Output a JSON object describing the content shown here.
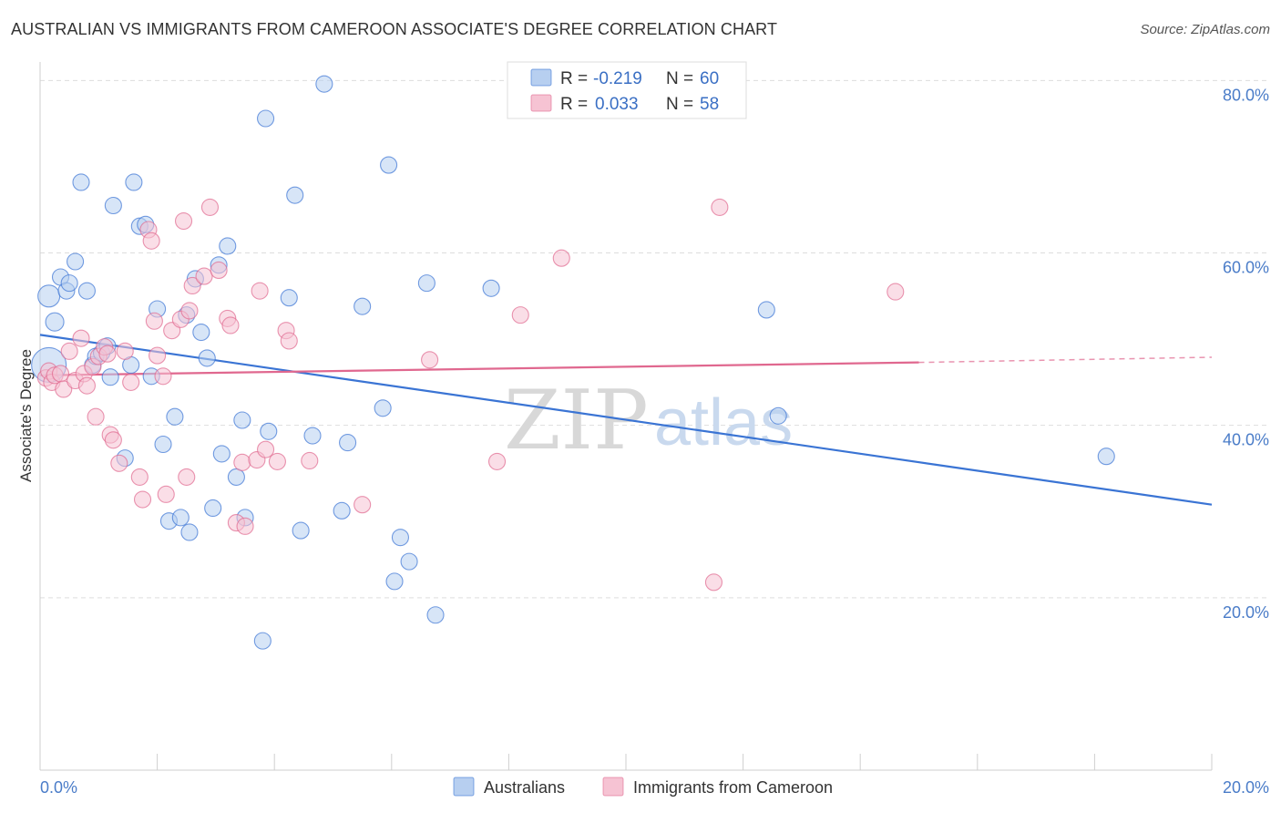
{
  "title": "AUSTRALIAN VS IMMIGRANTS FROM CAMEROON ASSOCIATE'S DEGREE CORRELATION CHART",
  "source": "Source: ZipAtlas.com",
  "watermark": {
    "part1": "ZIP",
    "part2": "atlas"
  },
  "colors": {
    "blue": "#3a74d4",
    "blue_fill": "#b7cff0",
    "pink": "#e0688f",
    "pink_fill": "#f6c3d3",
    "grid": "#dddddd",
    "tick_text": "#4a7cc8"
  },
  "legend": {
    "r_label": "R =",
    "n_label": "N =",
    "rows": [
      {
        "series": "Australians",
        "r": "-0.219",
        "n": "60"
      },
      {
        "series": "Immigrants from Cameroon",
        "r": "0.033",
        "n": "58"
      }
    ]
  },
  "chart_data": {
    "type": "scatter",
    "title": "AUSTRALIAN VS IMMIGRANTS FROM CAMEROON ASSOCIATE'S DEGREE CORRELATION CHART",
    "xlabel": "",
    "ylabel": "Associate's Degree",
    "xlim": [
      0,
      20
    ],
    "ylim": [
      0,
      83
    ],
    "x_tick_labels": [
      "0.0%",
      "20.0%"
    ],
    "y_ticks": [
      20,
      40,
      60,
      80
    ],
    "y_tick_labels": [
      "20.0%",
      "40.0%",
      "60.0%",
      "80.0%"
    ],
    "grid": true,
    "legend_position": "bottom",
    "series": [
      {
        "name": "Australians",
        "color": "#3a74d4",
        "points": [
          [
            0.15,
            47.0
          ],
          [
            0.15,
            55.0
          ],
          [
            0.25,
            52.0
          ],
          [
            0.35,
            57.2
          ],
          [
            0.45,
            55.6
          ],
          [
            0.5,
            56.5
          ],
          [
            0.6,
            59.0
          ],
          [
            0.7,
            68.2
          ],
          [
            0.8,
            55.6
          ],
          [
            0.9,
            47.0
          ],
          [
            0.95,
            48.0
          ],
          [
            1.05,
            48.4
          ],
          [
            1.15,
            49.2
          ],
          [
            1.2,
            45.6
          ],
          [
            1.25,
            65.5
          ],
          [
            1.45,
            36.2
          ],
          [
            1.55,
            47.0
          ],
          [
            1.6,
            68.2
          ],
          [
            1.7,
            63.1
          ],
          [
            1.8,
            63.3
          ],
          [
            1.9,
            45.7
          ],
          [
            2.0,
            53.5
          ],
          [
            2.1,
            37.8
          ],
          [
            2.2,
            28.9
          ],
          [
            2.3,
            41.0
          ],
          [
            2.4,
            29.3
          ],
          [
            2.5,
            52.8
          ],
          [
            2.55,
            27.6
          ],
          [
            2.65,
            57.0
          ],
          [
            2.75,
            50.8
          ],
          [
            2.85,
            47.8
          ],
          [
            2.95,
            30.4
          ],
          [
            3.05,
            58.6
          ],
          [
            3.1,
            36.7
          ],
          [
            3.2,
            60.8
          ],
          [
            3.35,
            34.0
          ],
          [
            3.45,
            40.6
          ],
          [
            3.5,
            29.3
          ],
          [
            3.85,
            75.6
          ],
          [
            3.8,
            15.0
          ],
          [
            3.9,
            39.3
          ],
          [
            4.25,
            54.8
          ],
          [
            4.35,
            66.7
          ],
          [
            4.45,
            27.8
          ],
          [
            4.65,
            38.8
          ],
          [
            4.85,
            79.6
          ],
          [
            5.15,
            30.1
          ],
          [
            5.25,
            38.0
          ],
          [
            5.5,
            53.8
          ],
          [
            5.85,
            42.0
          ],
          [
            5.95,
            70.2
          ],
          [
            6.05,
            21.9
          ],
          [
            6.15,
            27.0
          ],
          [
            6.3,
            24.2
          ],
          [
            6.6,
            56.5
          ],
          [
            6.75,
            18.0
          ],
          [
            7.7,
            55.9
          ],
          [
            12.4,
            53.4
          ],
          [
            12.6,
            41.1
          ],
          [
            18.2,
            36.4
          ]
        ],
        "trend": {
          "x": [
            0.0,
            20.0
          ],
          "y": [
            50.5,
            30.8
          ]
        }
      },
      {
        "name": "Immigrants from Cameroon",
        "color": "#e0688f",
        "points": [
          [
            0.1,
            45.5
          ],
          [
            0.15,
            46.3
          ],
          [
            0.2,
            45.0
          ],
          [
            0.25,
            45.8
          ],
          [
            0.35,
            46.0
          ],
          [
            0.4,
            44.2
          ],
          [
            0.5,
            48.6
          ],
          [
            0.6,
            45.2
          ],
          [
            0.7,
            50.1
          ],
          [
            0.75,
            46.0
          ],
          [
            0.8,
            44.6
          ],
          [
            0.9,
            46.8
          ],
          [
            0.95,
            41.0
          ],
          [
            1.0,
            48.0
          ],
          [
            1.1,
            49.1
          ],
          [
            1.15,
            48.3
          ],
          [
            1.2,
            38.9
          ],
          [
            1.25,
            38.3
          ],
          [
            1.35,
            35.6
          ],
          [
            1.45,
            48.6
          ],
          [
            1.55,
            45.0
          ],
          [
            1.7,
            34.0
          ],
          [
            1.75,
            31.4
          ],
          [
            1.85,
            62.7
          ],
          [
            1.9,
            61.4
          ],
          [
            1.95,
            52.1
          ],
          [
            2.0,
            48.1
          ],
          [
            2.1,
            45.7
          ],
          [
            2.15,
            32.0
          ],
          [
            2.25,
            51.0
          ],
          [
            2.4,
            52.3
          ],
          [
            2.45,
            63.7
          ],
          [
            2.5,
            34.0
          ],
          [
            2.55,
            53.3
          ],
          [
            2.6,
            56.2
          ],
          [
            2.8,
            57.3
          ],
          [
            2.9,
            65.3
          ],
          [
            3.05,
            58.0
          ],
          [
            3.2,
            52.4
          ],
          [
            3.25,
            51.6
          ],
          [
            3.35,
            28.7
          ],
          [
            3.45,
            35.7
          ],
          [
            3.5,
            28.3
          ],
          [
            3.7,
            36.0
          ],
          [
            3.75,
            55.6
          ],
          [
            3.85,
            37.2
          ],
          [
            4.05,
            35.8
          ],
          [
            4.2,
            51.0
          ],
          [
            4.25,
            49.8
          ],
          [
            4.6,
            35.9
          ],
          [
            5.5,
            30.8
          ],
          [
            6.65,
            47.6
          ],
          [
            7.8,
            35.8
          ],
          [
            8.2,
            52.8
          ],
          [
            8.9,
            59.4
          ],
          [
            11.5,
            21.8
          ],
          [
            11.6,
            65.3
          ],
          [
            14.6,
            55.5
          ]
        ],
        "trend": {
          "x": [
            0.0,
            15.0
          ],
          "y": [
            45.8,
            47.3
          ]
        },
        "trend_dashed": {
          "x": [
            15.0,
            20.0
          ],
          "y": [
            47.3,
            47.9
          ]
        }
      }
    ]
  }
}
